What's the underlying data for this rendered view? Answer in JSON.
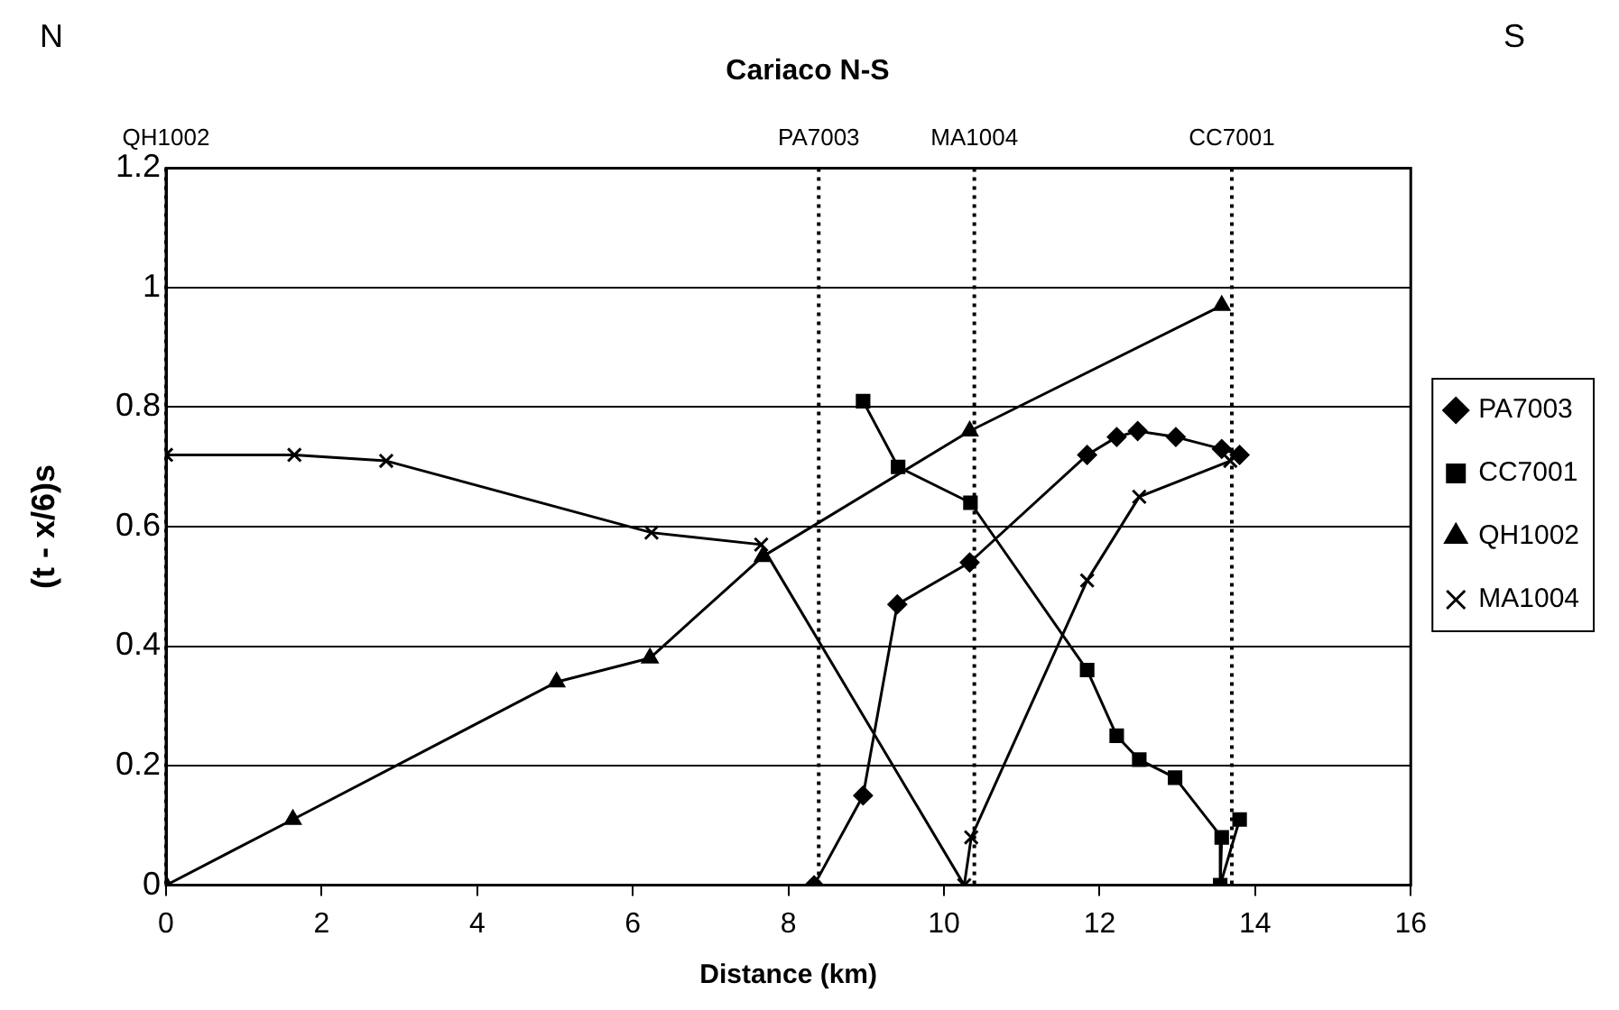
{
  "chart_data": {
    "type": "line",
    "title": "Cariaco N-S",
    "xlabel": "Distance (km)",
    "ylabel": "(t - x/6)s",
    "xlim": [
      0,
      16
    ],
    "xticks": [
      0,
      2,
      4,
      6,
      8,
      10,
      12,
      14,
      16
    ],
    "ylim": [
      0,
      1.2
    ],
    "yticks": [
      0,
      0.2,
      0.4,
      0.6,
      0.8,
      1,
      1.2
    ],
    "grid": "y",
    "legend": "right",
    "line_style": "solid",
    "annotations": [
      "N",
      "S"
    ],
    "ref_lines": [
      {
        "axis": "x",
        "value": 0,
        "label": "QH1002",
        "line_style": "dotted",
        "color": "#000000"
      },
      {
        "axis": "x",
        "value": 8.39,
        "label": "PA7003",
        "line_style": "dotted",
        "color": "#000000"
      },
      {
        "axis": "x",
        "value": 10.39,
        "label": "MA1004",
        "line_style": "dotted",
        "color": "#000000"
      },
      {
        "axis": "x",
        "value": 13.7,
        "label": "CC7001",
        "line_style": "dotted",
        "color": "#000000"
      }
    ],
    "series": [
      {
        "name": "PA7003",
        "color": "#000000",
        "marker": "diamond",
        "x": [
          8.33,
          8.96,
          9.4,
          10.33,
          11.84,
          12.22,
          12.49,
          12.98,
          13.57,
          13.8
        ],
        "values": [
          0,
          0.15,
          0.47,
          0.54,
          0.72,
          0.75,
          0.76,
          0.75,
          0.73,
          0.72
        ]
      },
      {
        "name": "CC7001",
        "color": "#000000",
        "marker": "square",
        "x": [
          8.96,
          9.41,
          10.34,
          11.84,
          12.22,
          12.51,
          12.97,
          13.57,
          13.55,
          13.8
        ],
        "values": [
          0.81,
          0.7,
          0.64,
          0.36,
          0.25,
          0.21,
          0.18,
          0.08,
          0,
          0.11
        ]
      },
      {
        "name": "QH1002",
        "color": "#000000",
        "marker": "triangle",
        "x": [
          0,
          1.63,
          5.02,
          6.22,
          7.67,
          10.33,
          13.57
        ],
        "values": [
          0,
          0.11,
          0.34,
          0.38,
          0.55,
          0.76,
          0.97
        ]
      },
      {
        "name": "MA1004",
        "color": "#000000",
        "marker": "cross",
        "x": [
          0,
          1.65,
          2.83,
          6.24,
          7.65,
          10.26,
          10.35,
          11.84,
          12.51,
          13.68
        ],
        "values": [
          0.72,
          0.72,
          0.71,
          0.59,
          0.57,
          0,
          0.08,
          0.51,
          0.65,
          0.71
        ]
      }
    ]
  }
}
